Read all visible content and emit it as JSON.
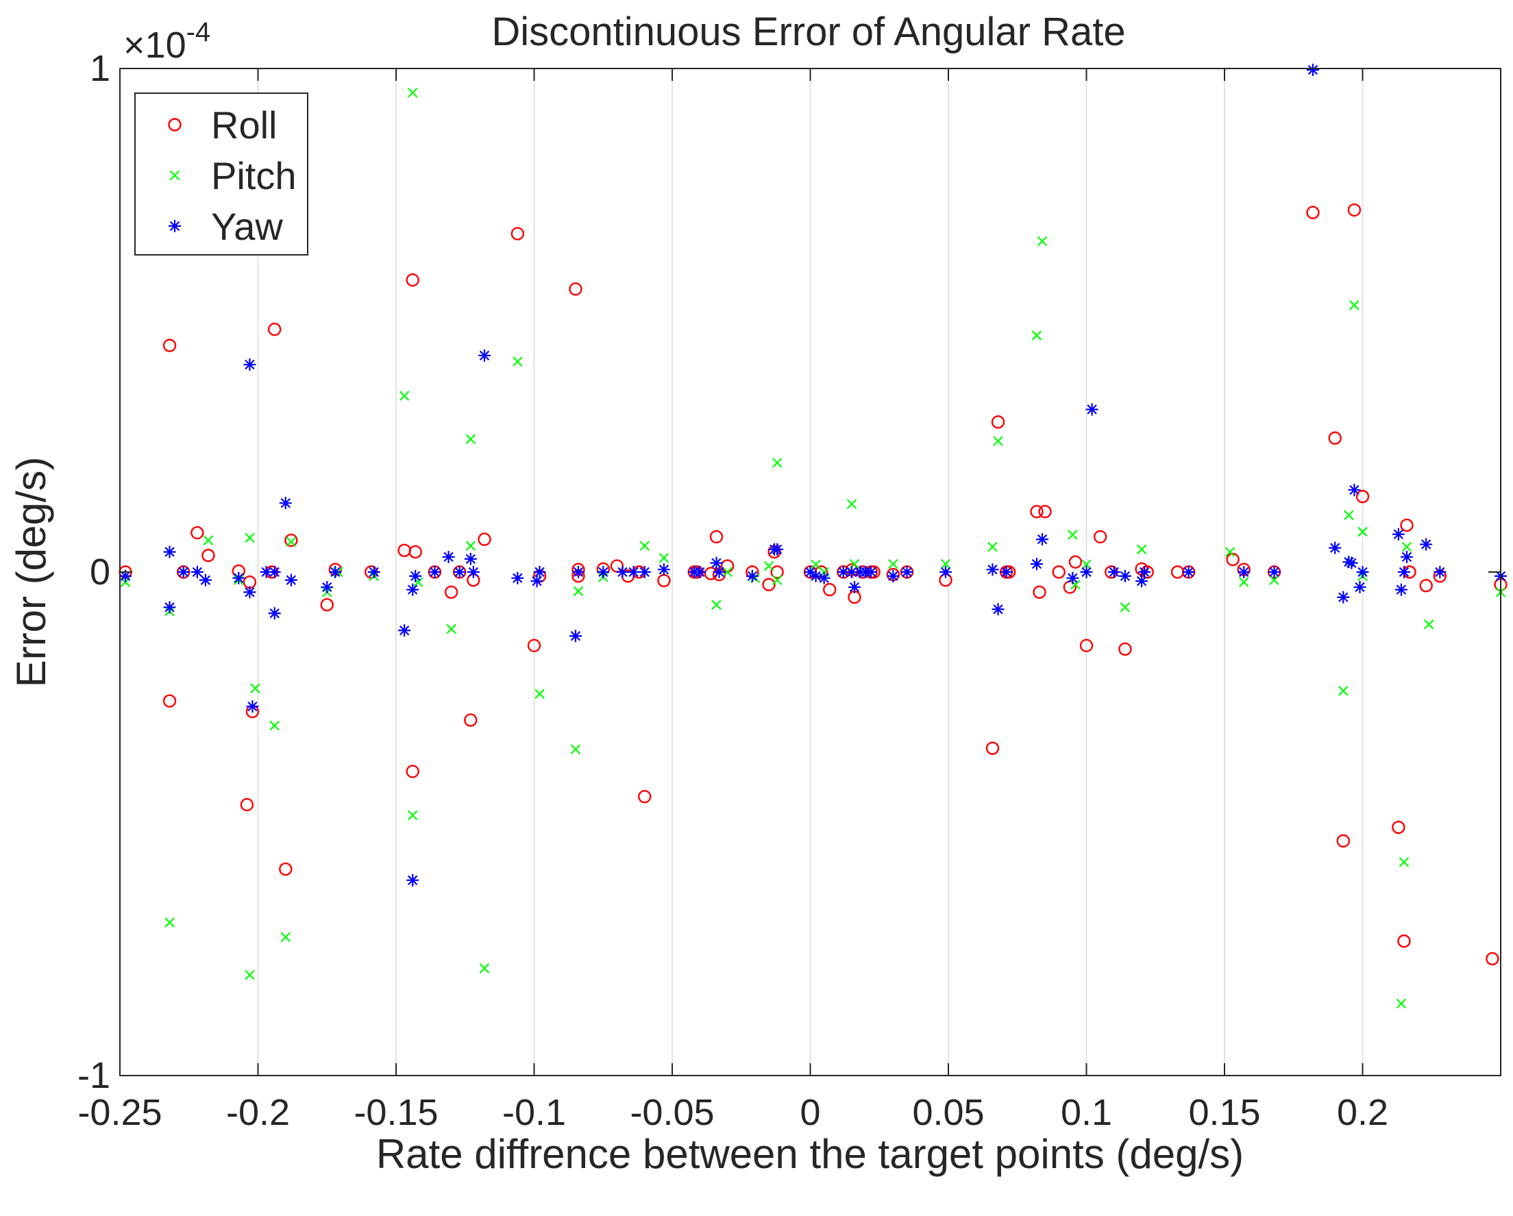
{
  "chart_data": {
    "type": "scatter",
    "title": "Discontinuous Error of Angular Rate",
    "xlabel": "Rate diffrence between the target points (deg/s)",
    "ylabel": "Error (deg/s)",
    "xlim": [
      -0.25,
      0.25
    ],
    "ylim": [
      -1,
      1
    ],
    "y_exponent_label": "×10",
    "y_exponent_power": "-4",
    "x_ticks": [
      -0.25,
      -0.2,
      -0.15,
      -0.1,
      -0.05,
      0,
      0.05,
      0.1,
      0.15,
      0.2
    ],
    "x_tick_labels": [
      "-0.25",
      "-0.2",
      "-0.15",
      "-0.1",
      "-0.05",
      "0",
      "0.05",
      "0.1",
      "0.15",
      "0.2"
    ],
    "y_ticks": [
      -1,
      0,
      1
    ],
    "y_tick_labels": [
      "-1",
      "0",
      "1"
    ],
    "grid": "vertical",
    "legend_position": "top-left",
    "series": [
      {
        "name": "Roll",
        "marker": "circle",
        "color": "#ff0000",
        "points": [
          [
            -0.248,
            0.0
          ],
          [
            -0.232,
            0.45
          ],
          [
            -0.232,
            -0.256
          ],
          [
            -0.227,
            0.0
          ],
          [
            -0.222,
            0.078
          ],
          [
            -0.218,
            0.033
          ],
          [
            -0.207,
            0.002
          ],
          [
            -0.204,
            -0.462
          ],
          [
            -0.203,
            -0.02
          ],
          [
            -0.202,
            -0.277
          ],
          [
            -0.195,
            0.0
          ],
          [
            -0.194,
            0.482
          ],
          [
            -0.19,
            -0.59
          ],
          [
            -0.188,
            0.063
          ],
          [
            -0.175,
            -0.065
          ],
          [
            -0.172,
            0.005
          ],
          [
            -0.159,
            0.0
          ],
          [
            -0.147,
            0.043
          ],
          [
            -0.144,
            0.58
          ],
          [
            -0.144,
            -0.396
          ],
          [
            -0.143,
            0.04
          ],
          [
            -0.136,
            0.0
          ],
          [
            -0.13,
            -0.04
          ],
          [
            -0.127,
            0.0
          ],
          [
            -0.123,
            -0.294
          ],
          [
            -0.122,
            -0.016
          ],
          [
            -0.118,
            0.065
          ],
          [
            -0.106,
            0.672
          ],
          [
            -0.1,
            -0.146
          ],
          [
            -0.098,
            -0.008
          ],
          [
            -0.085,
            0.562
          ],
          [
            -0.084,
            0.005
          ],
          [
            -0.084,
            -0.008
          ],
          [
            -0.075,
            0.006
          ],
          [
            -0.07,
            0.012
          ],
          [
            -0.066,
            -0.008
          ],
          [
            -0.062,
            0.0
          ],
          [
            -0.06,
            -0.446
          ],
          [
            -0.053,
            -0.017
          ],
          [
            -0.042,
            0.0
          ],
          [
            -0.041,
            0.0
          ],
          [
            -0.036,
            -0.003
          ],
          [
            -0.034,
            0.07
          ],
          [
            -0.033,
            -0.005
          ],
          [
            -0.03,
            0.012
          ],
          [
            -0.021,
            0.0
          ],
          [
            -0.015,
            -0.025
          ],
          [
            -0.013,
            0.04
          ],
          [
            -0.012,
            0.0
          ],
          [
            0.0,
            0.0
          ],
          [
            0.004,
            0.0
          ],
          [
            0.007,
            -0.035
          ],
          [
            0.012,
            0.0
          ],
          [
            0.015,
            0.004
          ],
          [
            0.016,
            -0.05
          ],
          [
            0.019,
            0.0
          ],
          [
            0.022,
            0.0
          ],
          [
            0.023,
            0.0
          ],
          [
            0.03,
            -0.005
          ],
          [
            0.035,
            0.0
          ],
          [
            0.049,
            -0.016
          ],
          [
            0.066,
            -0.35
          ],
          [
            0.068,
            0.298
          ],
          [
            0.071,
            0.0
          ],
          [
            0.072,
            0.0
          ],
          [
            0.082,
            0.12
          ],
          [
            0.083,
            -0.04
          ],
          [
            0.085,
            0.12
          ],
          [
            0.09,
            0.0
          ],
          [
            0.094,
            -0.03
          ],
          [
            0.096,
            0.02
          ],
          [
            0.1,
            -0.146
          ],
          [
            0.105,
            0.07
          ],
          [
            0.109,
            0.0
          ],
          [
            0.114,
            -0.153
          ],
          [
            0.12,
            0.006
          ],
          [
            0.122,
            0.0
          ],
          [
            0.133,
            0.0
          ],
          [
            0.137,
            0.0
          ],
          [
            0.153,
            0.025
          ],
          [
            0.157,
            0.005
          ],
          [
            0.168,
            0.0
          ],
          [
            0.182,
            0.714
          ],
          [
            0.19,
            0.266
          ],
          [
            0.193,
            -0.534
          ],
          [
            0.197,
            0.719
          ],
          [
            0.2,
            0.15
          ],
          [
            0.213,
            -0.507
          ],
          [
            0.215,
            -0.733
          ],
          [
            0.216,
            0.093
          ],
          [
            0.217,
            0.0
          ],
          [
            0.223,
            -0.027
          ],
          [
            0.228,
            -0.008
          ],
          [
            0.247,
            -0.768
          ],
          [
            0.25,
            -0.025
          ]
        ]
      },
      {
        "name": "Pitch",
        "marker": "x",
        "color": "#00ff00",
        "points": [
          [
            -0.248,
            -0.02
          ],
          [
            -0.232,
            -0.078
          ],
          [
            -0.232,
            -0.696
          ],
          [
            -0.218,
            0.063
          ],
          [
            -0.207,
            -0.016
          ],
          [
            -0.203,
            0.068
          ],
          [
            -0.203,
            -0.8
          ],
          [
            -0.201,
            -0.231
          ],
          [
            -0.194,
            -0.305
          ],
          [
            -0.19,
            -0.725
          ],
          [
            -0.188,
            0.06
          ],
          [
            -0.175,
            -0.04
          ],
          [
            -0.171,
            0.0
          ],
          [
            -0.158,
            -0.008
          ],
          [
            -0.147,
            0.35
          ],
          [
            -0.144,
            0.952
          ],
          [
            -0.144,
            -0.483
          ],
          [
            -0.142,
            -0.02
          ],
          [
            -0.13,
            -0.113
          ],
          [
            -0.127,
            0.0
          ],
          [
            -0.123,
            0.264
          ],
          [
            -0.123,
            0.052
          ],
          [
            -0.118,
            -0.787
          ],
          [
            -0.106,
            0.418
          ],
          [
            -0.098,
            -0.242
          ],
          [
            -0.098,
            0.0
          ],
          [
            -0.085,
            -0.352
          ],
          [
            -0.084,
            -0.038
          ],
          [
            -0.075,
            -0.01
          ],
          [
            -0.06,
            0.052
          ],
          [
            -0.053,
            0.028
          ],
          [
            -0.034,
            -0.065
          ],
          [
            -0.03,
            0.0
          ],
          [
            -0.02,
            -0.012
          ],
          [
            -0.015,
            0.012
          ],
          [
            -0.012,
            0.217
          ],
          [
            -0.012,
            -0.016
          ],
          [
            0.002,
            0.015
          ],
          [
            0.005,
            0.0
          ],
          [
            0.015,
            0.135
          ],
          [
            0.016,
            0.016
          ],
          [
            0.03,
            0.016
          ],
          [
            0.049,
            0.016
          ],
          [
            0.066,
            0.05
          ],
          [
            0.068,
            0.26
          ],
          [
            0.082,
            0.47
          ],
          [
            0.084,
            0.657
          ],
          [
            0.095,
            0.074
          ],
          [
            0.096,
            -0.025
          ],
          [
            0.1,
            0.015
          ],
          [
            0.114,
            -0.07
          ],
          [
            0.12,
            0.045
          ],
          [
            0.152,
            0.04
          ],
          [
            0.157,
            -0.02
          ],
          [
            0.168,
            -0.016
          ],
          [
            0.193,
            -0.236
          ],
          [
            0.195,
            0.113
          ],
          [
            0.197,
            0.53
          ],
          [
            0.2,
            0.08
          ],
          [
            0.2,
            -0.008
          ],
          [
            0.214,
            -0.857
          ],
          [
            0.215,
            -0.576
          ],
          [
            0.216,
            0.05
          ],
          [
            0.224,
            -0.104
          ],
          [
            0.25,
            -0.04
          ]
        ]
      },
      {
        "name": "Yaw",
        "marker": "star",
        "color": "#0000ff",
        "points": [
          [
            -0.248,
            -0.008
          ],
          [
            -0.232,
            0.04
          ],
          [
            -0.232,
            -0.07
          ],
          [
            -0.227,
            0.0
          ],
          [
            -0.222,
            0.0
          ],
          [
            -0.219,
            -0.016
          ],
          [
            -0.207,
            -0.012
          ],
          [
            -0.203,
            0.412
          ],
          [
            -0.203,
            -0.04
          ],
          [
            -0.202,
            -0.267
          ],
          [
            -0.197,
            0.0
          ],
          [
            -0.194,
            0.0
          ],
          [
            -0.194,
            -0.082
          ],
          [
            -0.19,
            0.137
          ],
          [
            -0.188,
            -0.016
          ],
          [
            -0.175,
            -0.03
          ],
          [
            -0.172,
            0.0
          ],
          [
            -0.158,
            0.0
          ],
          [
            -0.147,
            -0.116
          ],
          [
            -0.144,
            -0.035
          ],
          [
            -0.144,
            -0.612
          ],
          [
            -0.143,
            -0.008
          ],
          [
            -0.136,
            0.0
          ],
          [
            -0.131,
            0.03
          ],
          [
            -0.127,
            0.0
          ],
          [
            -0.123,
            0.026
          ],
          [
            -0.122,
            0.0
          ],
          [
            -0.118,
            0.43
          ],
          [
            -0.106,
            -0.012
          ],
          [
            -0.099,
            -0.018
          ],
          [
            -0.098,
            0.0
          ],
          [
            -0.085,
            -0.127
          ],
          [
            -0.084,
            0.0
          ],
          [
            -0.075,
            0.0
          ],
          [
            -0.068,
            0.0
          ],
          [
            -0.064,
            0.0
          ],
          [
            -0.06,
            0.0
          ],
          [
            -0.053,
            0.005
          ],
          [
            -0.042,
            0.0
          ],
          [
            -0.04,
            0.0
          ],
          [
            -0.034,
            0.018
          ],
          [
            -0.033,
            0.0
          ],
          [
            -0.021,
            -0.008
          ],
          [
            -0.013,
            0.045
          ],
          [
            -0.012,
            0.045
          ],
          [
            0.0,
            0.0
          ],
          [
            0.002,
            -0.008
          ],
          [
            0.005,
            -0.012
          ],
          [
            0.012,
            0.0
          ],
          [
            0.015,
            0.0
          ],
          [
            0.016,
            -0.03
          ],
          [
            0.018,
            0.0
          ],
          [
            0.02,
            0.0
          ],
          [
            0.022,
            0.0
          ],
          [
            0.03,
            -0.008
          ],
          [
            0.035,
            0.0
          ],
          [
            0.049,
            0.0
          ],
          [
            0.066,
            0.005
          ],
          [
            0.068,
            -0.074
          ],
          [
            0.071,
            0.0
          ],
          [
            0.082,
            0.016
          ],
          [
            0.084,
            0.065
          ],
          [
            0.095,
            -0.012
          ],
          [
            0.102,
            0.323
          ],
          [
            0.1,
            0.0
          ],
          [
            0.11,
            0.0
          ],
          [
            0.114,
            -0.008
          ],
          [
            0.12,
            -0.018
          ],
          [
            0.121,
            0.0
          ],
          [
            0.137,
            0.0
          ],
          [
            0.157,
            0.0
          ],
          [
            0.168,
            0.0
          ],
          [
            0.182,
            1.0
          ],
          [
            0.19,
            0.048
          ],
          [
            0.193,
            -0.05
          ],
          [
            0.195,
            0.02
          ],
          [
            0.196,
            0.018
          ],
          [
            0.197,
            0.163
          ],
          [
            0.199,
            -0.03
          ],
          [
            0.2,
            0.0
          ],
          [
            0.213,
            0.075
          ],
          [
            0.214,
            -0.035
          ],
          [
            0.215,
            0.0
          ],
          [
            0.216,
            0.03
          ],
          [
            0.223,
            0.055
          ],
          [
            0.228,
            0.0
          ],
          [
            0.25,
            -0.008
          ]
        ]
      }
    ]
  }
}
